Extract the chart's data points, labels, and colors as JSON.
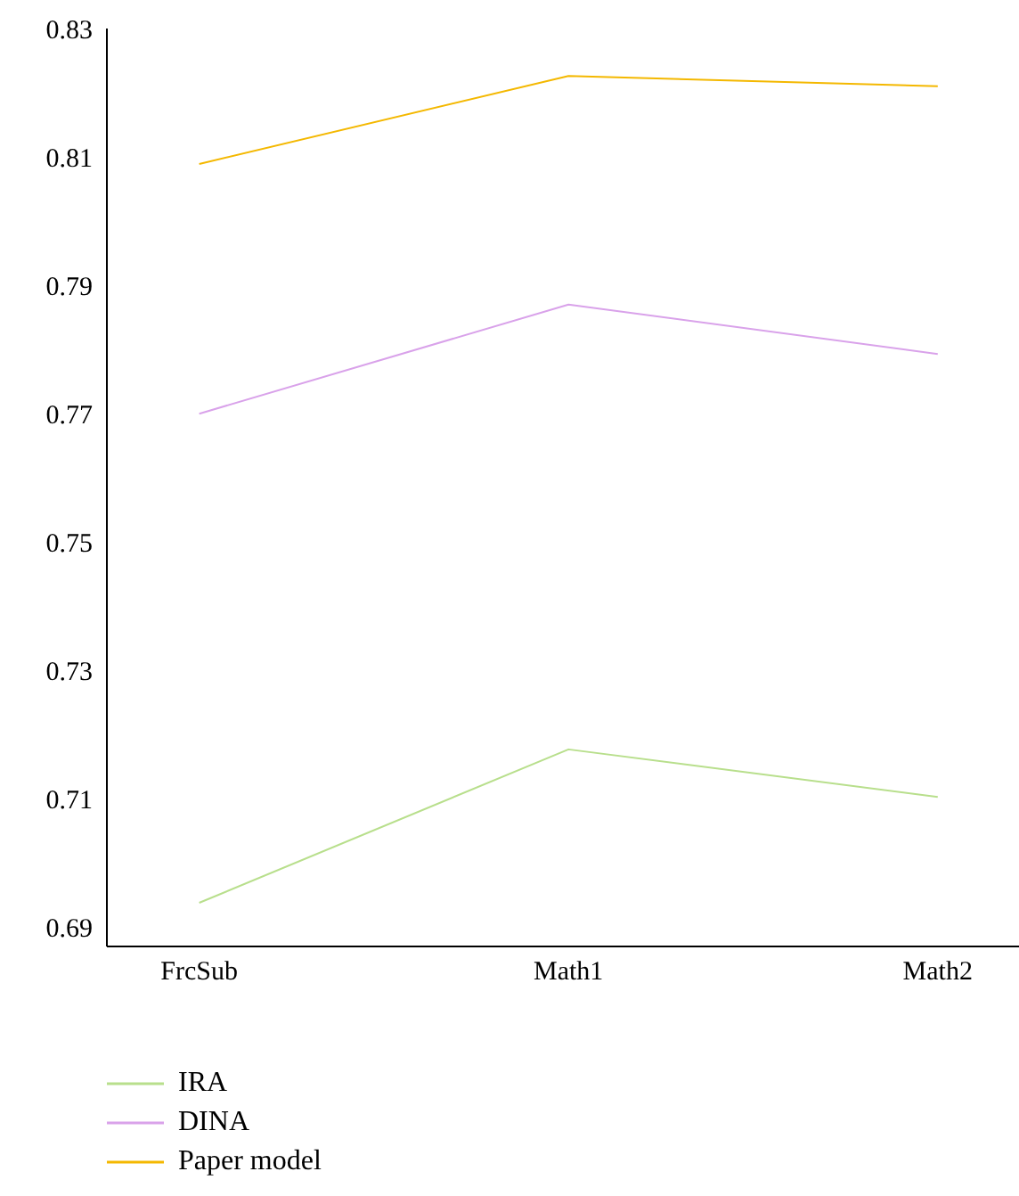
{
  "chart_data": {
    "type": "line",
    "categories": [
      "FrcSub",
      "Math1",
      "Math2"
    ],
    "series": [
      {
        "name": "IRA",
        "color": "#b8df8c",
        "values": [
          0.6938,
          0.7177,
          0.7103
        ]
      },
      {
        "name": "DINA",
        "color": "#d9a2ea",
        "values": [
          0.77,
          0.787,
          0.7793
        ]
      },
      {
        "name": "Paper model",
        "color": "#f4b800",
        "values": [
          0.8089,
          0.8226,
          0.821
        ]
      }
    ],
    "ylim": [
      0.687,
      0.83
    ],
    "yticks": [
      0.69,
      0.71,
      0.73,
      0.75,
      0.77,
      0.79,
      0.81,
      0.83
    ],
    "grid": false,
    "legend": "bottom left",
    "marker": "none",
    "line_style": "solid"
  }
}
